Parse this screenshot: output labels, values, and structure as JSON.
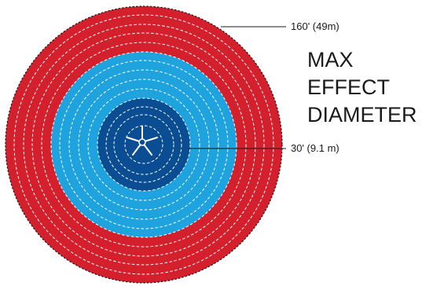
{
  "labels": {
    "outer_diameter": "160' (49m)",
    "inner_diameter": "30' (9.1 m)"
  },
  "title": {
    "line1": "MAX",
    "line2": "EFFECT",
    "line3": "DIAMETER"
  },
  "zones": [
    {
      "name": "outer",
      "color": "#d4202d"
    },
    {
      "name": "middle",
      "color": "#1fa3de"
    },
    {
      "name": "inner",
      "color": "#0a4d92"
    }
  ],
  "icons": {
    "center": "fan-icon"
  }
}
